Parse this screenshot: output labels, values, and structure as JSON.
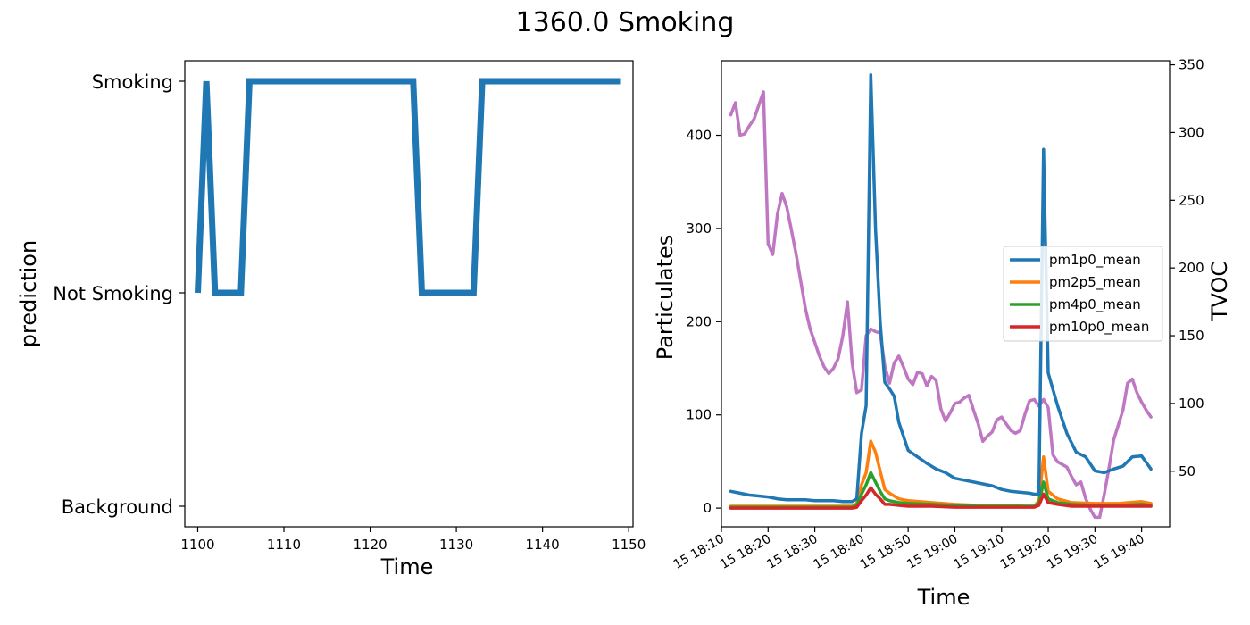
{
  "title": "1360.0 Smoking",
  "chart_data": [
    {
      "type": "line",
      "xlabel": "Time",
      "ylabel": "prediction",
      "xlim": [
        1098.5,
        1150.5
      ],
      "xticks": [
        1100,
        1110,
        1120,
        1130,
        1140,
        1150
      ],
      "yticks": [
        "Background",
        "Not Smoking",
        "Smoking"
      ],
      "series": [
        {
          "color": "#1f77b4",
          "x": [
            1100,
            1101,
            1102,
            1103,
            1104,
            1105,
            1106,
            1107,
            1108,
            1109,
            1110,
            1111,
            1112,
            1113,
            1114,
            1115,
            1116,
            1117,
            1118,
            1119,
            1120,
            1121,
            1122,
            1123,
            1124,
            1125,
            1126,
            1127,
            1128,
            1129,
            1130,
            1131,
            1132,
            1133,
            1134,
            1135,
            1136,
            1137,
            1138,
            1139,
            1140,
            1141,
            1142,
            1143,
            1144,
            1145,
            1146,
            1147,
            1148,
            1149
          ],
          "y": [
            "Not Smoking",
            "Smoking",
            "Not Smoking",
            "Not Smoking",
            "Not Smoking",
            "Not Smoking",
            "Smoking",
            "Smoking",
            "Smoking",
            "Smoking",
            "Smoking",
            "Smoking",
            "Smoking",
            "Smoking",
            "Smoking",
            "Smoking",
            "Smoking",
            "Smoking",
            "Smoking",
            "Smoking",
            "Smoking",
            "Smoking",
            "Smoking",
            "Smoking",
            "Smoking",
            "Smoking",
            "Not Smoking",
            "Not Smoking",
            "Not Smoking",
            "Not Smoking",
            "Not Smoking",
            "Not Smoking",
            "Not Smoking",
            "Smoking",
            "Smoking",
            "Smoking",
            "Smoking",
            "Smoking",
            "Smoking",
            "Smoking",
            "Smoking",
            "Smoking",
            "Smoking",
            "Smoking",
            "Smoking",
            "Smoking",
            "Smoking",
            "Smoking",
            "Smoking",
            "Smoking"
          ]
        }
      ]
    },
    {
      "type": "line",
      "xlabel": "Time",
      "ylabel": "Particulates",
      "y2label": "TVOC",
      "ylim": [
        -20,
        480
      ],
      "y2lim": [
        9,
        353
      ],
      "yticks": [
        0,
        100,
        200,
        300,
        400
      ],
      "y2ticks": [
        50,
        100,
        150,
        200,
        250,
        300,
        350
      ],
      "xlim": [
        "18:10",
        "19:46"
      ],
      "xticks": [
        "15 18:10",
        "15 18:20",
        "15 18:30",
        "15 18:40",
        "15 18:50",
        "15 19:00",
        "15 19:10",
        "15 19:20",
        "15 19:30",
        "15 19:40"
      ],
      "legend_position": "center-right",
      "series": [
        {
          "name": "pm1p0_mean",
          "color": "#1f77b4",
          "axis": "left",
          "x": [
            "18:12",
            "18:14",
            "18:16",
            "18:18",
            "18:20",
            "18:22",
            "18:24",
            "18:26",
            "18:28",
            "18:30",
            "18:32",
            "18:34",
            "18:36",
            "18:38",
            "18:39",
            "18:40",
            "18:41",
            "18:42",
            "18:43",
            "18:44",
            "18:45",
            "18:46",
            "18:47",
            "18:48",
            "18:50",
            "18:52",
            "18:54",
            "18:56",
            "18:58",
            "19:00",
            "19:02",
            "19:04",
            "19:06",
            "19:08",
            "19:10",
            "19:12",
            "19:14",
            "19:16",
            "19:17",
            "19:18",
            "19:19",
            "19:20",
            "19:22",
            "19:24",
            "19:26",
            "19:28",
            "19:30",
            "19:32",
            "19:34",
            "19:36",
            "19:38",
            "19:40",
            "19:42"
          ],
          "y": [
            18,
            16,
            14,
            13,
            12,
            10,
            9,
            9,
            9,
            8,
            8,
            8,
            7,
            7,
            10,
            80,
            110,
            465,
            300,
            200,
            135,
            128,
            120,
            92,
            62,
            55,
            48,
            42,
            38,
            32,
            30,
            28,
            26,
            24,
            20,
            18,
            17,
            16,
            15,
            15,
            385,
            145,
            110,
            80,
            60,
            55,
            40,
            38,
            42,
            45,
            55,
            56,
            42
          ]
        },
        {
          "name": "pm2p5_mean",
          "color": "#ff7f0e",
          "axis": "left",
          "x": [
            "18:12",
            "18:20",
            "18:30",
            "18:38",
            "18:39",
            "18:40",
            "18:41",
            "18:42",
            "18:43",
            "18:44",
            "18:45",
            "18:46",
            "18:48",
            "18:50",
            "18:55",
            "19:00",
            "19:05",
            "19:10",
            "19:15",
            "19:17",
            "19:18",
            "19:19",
            "19:20",
            "19:22",
            "19:25",
            "19:30",
            "19:35",
            "19:40",
            "19:42"
          ],
          "y": [
            2,
            2,
            2,
            2,
            5,
            25,
            38,
            72,
            60,
            40,
            20,
            16,
            10,
            8,
            6,
            4,
            3,
            3,
            2,
            2,
            8,
            55,
            18,
            10,
            6,
            5,
            5,
            7,
            5
          ]
        },
        {
          "name": "pm4p0_mean",
          "color": "#2ca02c",
          "axis": "left",
          "x": [
            "18:12",
            "18:20",
            "18:30",
            "18:38",
            "18:39",
            "18:40",
            "18:41",
            "18:42",
            "18:43",
            "18:44",
            "18:45",
            "18:46",
            "18:48",
            "18:50",
            "18:55",
            "19:00",
            "19:05",
            "19:10",
            "19:15",
            "19:17",
            "19:18",
            "19:19",
            "19:20",
            "19:22",
            "19:25",
            "19:30",
            "19:35",
            "19:40",
            "19:42"
          ],
          "y": [
            1,
            1,
            1,
            1,
            3,
            15,
            25,
            38,
            28,
            18,
            10,
            8,
            6,
            5,
            4,
            3,
            2,
            2,
            2,
            2,
            5,
            28,
            10,
            6,
            4,
            3,
            3,
            4,
            3
          ]
        },
        {
          "name": "pm10p0_mean",
          "color": "#d62728",
          "axis": "left",
          "x": [
            "18:12",
            "18:20",
            "18:30",
            "18:38",
            "18:39",
            "18:40",
            "18:41",
            "18:42",
            "18:43",
            "18:44",
            "18:45",
            "18:46",
            "18:48",
            "18:50",
            "18:55",
            "19:00",
            "19:05",
            "19:10",
            "19:15",
            "19:17",
            "19:18",
            "19:19",
            "19:20",
            "19:22",
            "19:25",
            "19:30",
            "19:35",
            "19:40",
            "19:42"
          ],
          "y": [
            0,
            0,
            0,
            0,
            1,
            8,
            14,
            22,
            15,
            10,
            4,
            4,
            3,
            2,
            2,
            1,
            1,
            1,
            1,
            1,
            3,
            15,
            6,
            4,
            2,
            2,
            2,
            2,
            2
          ]
        },
        {
          "color": "#bf77c4",
          "axis": "right",
          "x": [
            "18:12",
            "18:13",
            "18:14",
            "18:15",
            "18:16",
            "18:17",
            "18:18",
            "18:19",
            "18:20",
            "18:21",
            "18:22",
            "18:23",
            "18:24",
            "18:25",
            "18:26",
            "18:27",
            "18:28",
            "18:29",
            "18:30",
            "18:31",
            "18:32",
            "18:33",
            "18:34",
            "18:35",
            "18:36",
            "18:37",
            "18:38",
            "18:39",
            "18:40",
            "18:41",
            "18:42",
            "18:43",
            "18:44",
            "18:45",
            "18:46",
            "18:47",
            "18:48",
            "18:49",
            "18:50",
            "18:51",
            "18:52",
            "18:53",
            "18:54",
            "18:55",
            "18:56",
            "18:57",
            "18:58",
            "18:59",
            "19:00",
            "19:01",
            "19:02",
            "19:03",
            "19:04",
            "19:05",
            "19:06",
            "19:07",
            "19:08",
            "19:09",
            "19:10",
            "19:11",
            "19:12",
            "19:13",
            "19:14",
            "19:15",
            "19:16",
            "19:17",
            "19:18",
            "19:19",
            "19:20",
            "19:21",
            "19:22",
            "19:23",
            "19:24",
            "19:25",
            "19:26",
            "19:27",
            "19:28",
            "19:29",
            "19:30",
            "19:31",
            "19:32",
            "19:33",
            "19:34",
            "19:35",
            "19:36",
            "19:37",
            "19:38",
            "19:39",
            "19:40",
            "19:41",
            "19:42"
          ],
          "y": [
            313,
            322,
            298,
            299,
            305,
            310,
            320,
            330,
            218,
            210,
            240,
            255,
            245,
            228,
            210,
            190,
            170,
            155,
            145,
            135,
            127,
            122,
            126,
            133,
            150,
            175,
            130,
            108,
            110,
            150,
            155,
            153,
            152,
            128,
            115,
            130,
            135,
            127,
            118,
            114,
            123,
            122,
            113,
            120,
            117,
            96,
            87,
            93,
            100,
            101,
            104,
            106,
            95,
            85,
            72,
            76,
            79,
            88,
            90,
            85,
            80,
            78,
            80,
            92,
            102,
            103,
            98,
            103,
            97,
            62,
            57,
            55,
            53,
            46,
            40,
            42,
            30,
            22,
            16,
            16,
            33,
            52,
            73,
            84,
            95,
            115,
            118,
            108,
            101,
            95,
            90
          ]
        }
      ]
    }
  ]
}
